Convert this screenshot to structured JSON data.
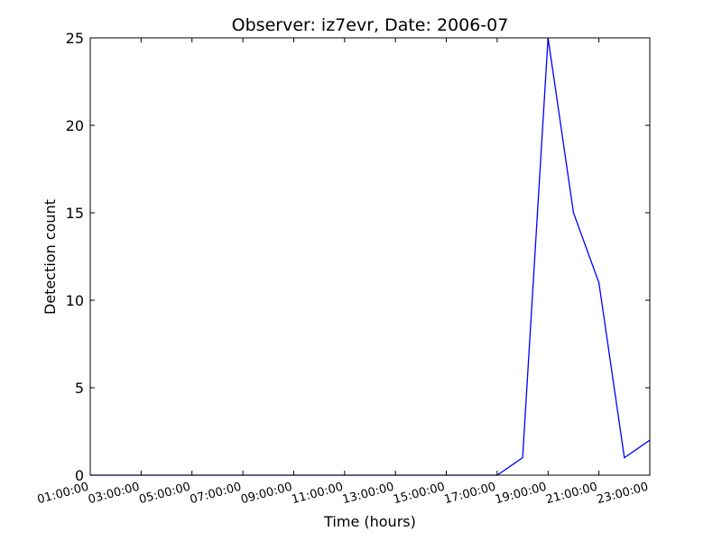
{
  "chart_data": {
    "type": "line",
    "title": "Observer: iz7evr, Date: 2006-07",
    "xlabel": "Time (hours)",
    "ylabel": "Detection count",
    "x_tick_labels": [
      "01:00:00",
      "03:00:00",
      "05:00:00",
      "07:00:00",
      "09:00:00",
      "11:00:00",
      "13:00:00",
      "15:00:00",
      "17:00:00",
      "19:00:00",
      "21:00:00",
      "23:00:00"
    ],
    "x_tick_hours": [
      1,
      3,
      5,
      7,
      9,
      11,
      13,
      15,
      17,
      19,
      21,
      23
    ],
    "xlim": [
      1,
      23
    ],
    "y_ticks": [
      0,
      5,
      10,
      15,
      20,
      25
    ],
    "ylim": [
      0,
      25
    ],
    "grid": false,
    "series": [
      {
        "color": "#0000ff",
        "x": [
          1,
          2,
          3,
          4,
          5,
          6,
          7,
          8,
          9,
          10,
          11,
          12,
          13,
          14,
          15,
          16,
          17,
          18,
          19,
          20,
          21,
          22,
          23
        ],
        "values": [
          0,
          0,
          0,
          0,
          0,
          0,
          0,
          0,
          0,
          0,
          0,
          0,
          0,
          0,
          0,
          0,
          0,
          1,
          25,
          15,
          11,
          1,
          2
        ]
      }
    ]
  }
}
